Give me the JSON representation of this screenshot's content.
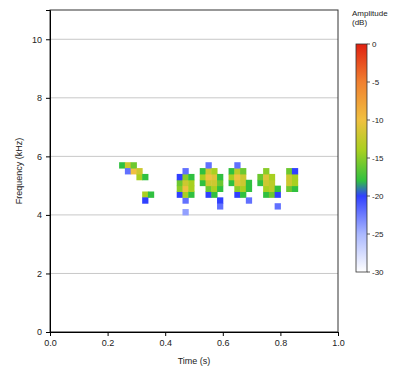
{
  "chart_data": {
    "type": "heatmap",
    "x_label": "Time (s)",
    "y_label": "Frequency (kHz)",
    "xlim": [
      0,
      1
    ],
    "ylim": [
      0,
      11
    ],
    "xticks": [
      {
        "value": 0,
        "label": "0.0"
      },
      {
        "value": 0.2,
        "label": "0.2"
      },
      {
        "value": 0.4,
        "label": "0.4"
      },
      {
        "value": 0.6,
        "label": "0.6"
      },
      {
        "value": 0.8,
        "label": "0.8"
      },
      {
        "value": 1,
        "label": "1.0"
      }
    ],
    "yticks": [
      0,
      2,
      4,
      6,
      8,
      10
    ],
    "grid": true,
    "colorbar": {
      "title": "Amplitude (dB)",
      "range": [
        -30,
        0
      ],
      "ticks": [
        0,
        -5,
        -10,
        -15,
        -20,
        -25,
        -30
      ]
    },
    "cells": [
      [
        0.24,
        5.6,
        -18
      ],
      [
        0.26,
        5.6,
        -12
      ],
      [
        0.26,
        5.4,
        -22
      ],
      [
        0.28,
        5.4,
        -10
      ],
      [
        0.28,
        5.6,
        -16
      ],
      [
        0.3,
        5.2,
        -14
      ],
      [
        0.3,
        5.4,
        -12
      ],
      [
        0.32,
        5.2,
        -18
      ],
      [
        0.32,
        4.6,
        -14
      ],
      [
        0.32,
        4.4,
        -20
      ],
      [
        0.34,
        4.6,
        -18
      ],
      [
        0.44,
        4.6,
        -20
      ],
      [
        0.44,
        4.8,
        -15
      ],
      [
        0.44,
        5.0,
        -16
      ],
      [
        0.44,
        5.2,
        -20
      ],
      [
        0.46,
        4.4,
        -22
      ],
      [
        0.46,
        4.6,
        -14
      ],
      [
        0.46,
        4.8,
        -10
      ],
      [
        0.46,
        5.0,
        -12
      ],
      [
        0.46,
        5.2,
        -15
      ],
      [
        0.46,
        5.4,
        -22
      ],
      [
        0.48,
        4.6,
        -18
      ],
      [
        0.48,
        4.8,
        -14
      ],
      [
        0.48,
        5.0,
        -14
      ],
      [
        0.48,
        5.2,
        -18
      ],
      [
        0.46,
        4.0,
        -24
      ],
      [
        0.52,
        5.0,
        -18
      ],
      [
        0.52,
        5.2,
        -14
      ],
      [
        0.52,
        5.4,
        -18
      ],
      [
        0.54,
        4.6,
        -20
      ],
      [
        0.54,
        4.8,
        -16
      ],
      [
        0.54,
        5.0,
        -12
      ],
      [
        0.54,
        5.2,
        -10
      ],
      [
        0.54,
        5.4,
        -12
      ],
      [
        0.54,
        5.6,
        -22
      ],
      [
        0.56,
        4.6,
        -18
      ],
      [
        0.56,
        4.8,
        -14
      ],
      [
        0.56,
        5.0,
        -12
      ],
      [
        0.56,
        5.2,
        -11
      ],
      [
        0.56,
        5.4,
        -14
      ],
      [
        0.58,
        4.2,
        -22
      ],
      [
        0.58,
        4.4,
        -20
      ],
      [
        0.58,
        4.8,
        -18
      ],
      [
        0.58,
        5.0,
        -16
      ],
      [
        0.58,
        5.2,
        -18
      ],
      [
        0.62,
        5.0,
        -18
      ],
      [
        0.62,
        5.2,
        -14
      ],
      [
        0.62,
        5.4,
        -18
      ],
      [
        0.64,
        4.6,
        -20
      ],
      [
        0.64,
        4.8,
        -15
      ],
      [
        0.64,
        5.0,
        -11
      ],
      [
        0.64,
        5.2,
        -10
      ],
      [
        0.64,
        5.4,
        -13
      ],
      [
        0.64,
        5.6,
        -22
      ],
      [
        0.66,
        4.6,
        -18
      ],
      [
        0.66,
        4.8,
        -14
      ],
      [
        0.66,
        5.0,
        -12
      ],
      [
        0.66,
        5.2,
        -12
      ],
      [
        0.66,
        5.4,
        -16
      ],
      [
        0.68,
        4.4,
        -22
      ],
      [
        0.68,
        4.8,
        -18
      ],
      [
        0.68,
        5.0,
        -18
      ],
      [
        0.72,
        5.0,
        -18
      ],
      [
        0.72,
        5.2,
        -16
      ],
      [
        0.74,
        4.6,
        -18
      ],
      [
        0.74,
        4.8,
        -14
      ],
      [
        0.74,
        5.0,
        -12
      ],
      [
        0.74,
        5.2,
        -11
      ],
      [
        0.74,
        5.4,
        -15
      ],
      [
        0.76,
        4.6,
        -16
      ],
      [
        0.76,
        4.8,
        -13
      ],
      [
        0.76,
        5.0,
        -13
      ],
      [
        0.76,
        5.2,
        -14
      ],
      [
        0.78,
        4.2,
        -22
      ],
      [
        0.78,
        4.6,
        -20
      ],
      [
        0.78,
        4.8,
        -18
      ],
      [
        0.82,
        4.8,
        -16
      ],
      [
        0.82,
        5.0,
        -12
      ],
      [
        0.82,
        5.2,
        -12
      ],
      [
        0.82,
        5.4,
        -16
      ],
      [
        0.84,
        4.8,
        -18
      ],
      [
        0.84,
        5.0,
        -14
      ],
      [
        0.84,
        5.2,
        -14
      ],
      [
        0.84,
        5.4,
        -20
      ]
    ]
  }
}
